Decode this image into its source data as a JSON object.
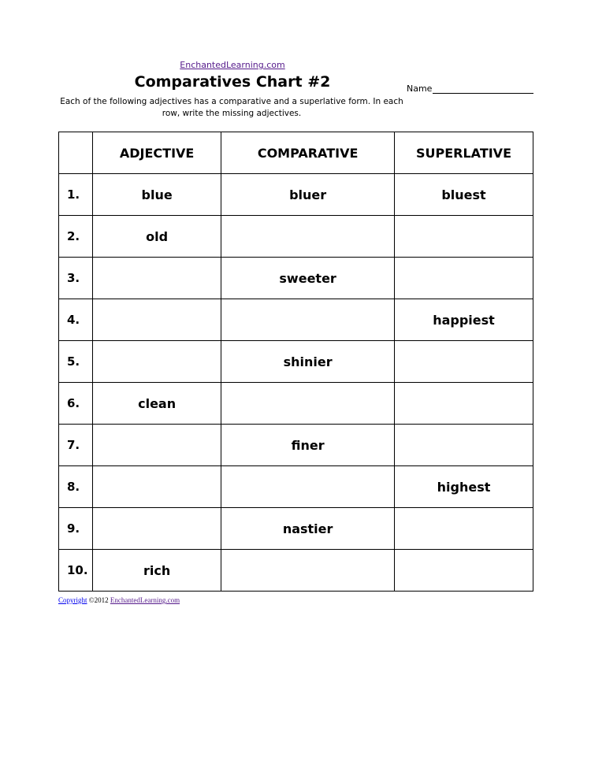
{
  "header": {
    "site": "EnchantedLearning.com",
    "title": "Comparatives Chart #2",
    "name_label": "Name",
    "instructions": "Each of the following adjectives has a comparative and a superlative form. In each row, write the missing adjectives."
  },
  "table": {
    "columns": [
      "",
      "ADJECTIVE",
      "COMPARATIVE",
      "SUPERLATIVE"
    ],
    "rows": [
      [
        "1.",
        "blue",
        "bluer",
        "bluest"
      ],
      [
        "2.",
        "old",
        "",
        ""
      ],
      [
        "3.",
        "",
        "sweeter",
        ""
      ],
      [
        "4.",
        "",
        "",
        "happiest"
      ],
      [
        "5.",
        "",
        "shinier",
        ""
      ],
      [
        "6.",
        "clean",
        "",
        ""
      ],
      [
        "7.",
        "",
        "finer",
        ""
      ],
      [
        "8.",
        "",
        "",
        "highest"
      ],
      [
        "9.",
        "",
        "nastier",
        ""
      ],
      [
        "10.",
        "rich",
        "",
        ""
      ]
    ]
  },
  "footer": {
    "copyright_link": "Copyright",
    "year": " ©2012 ",
    "site_link": "EnchantedLearning.com"
  }
}
